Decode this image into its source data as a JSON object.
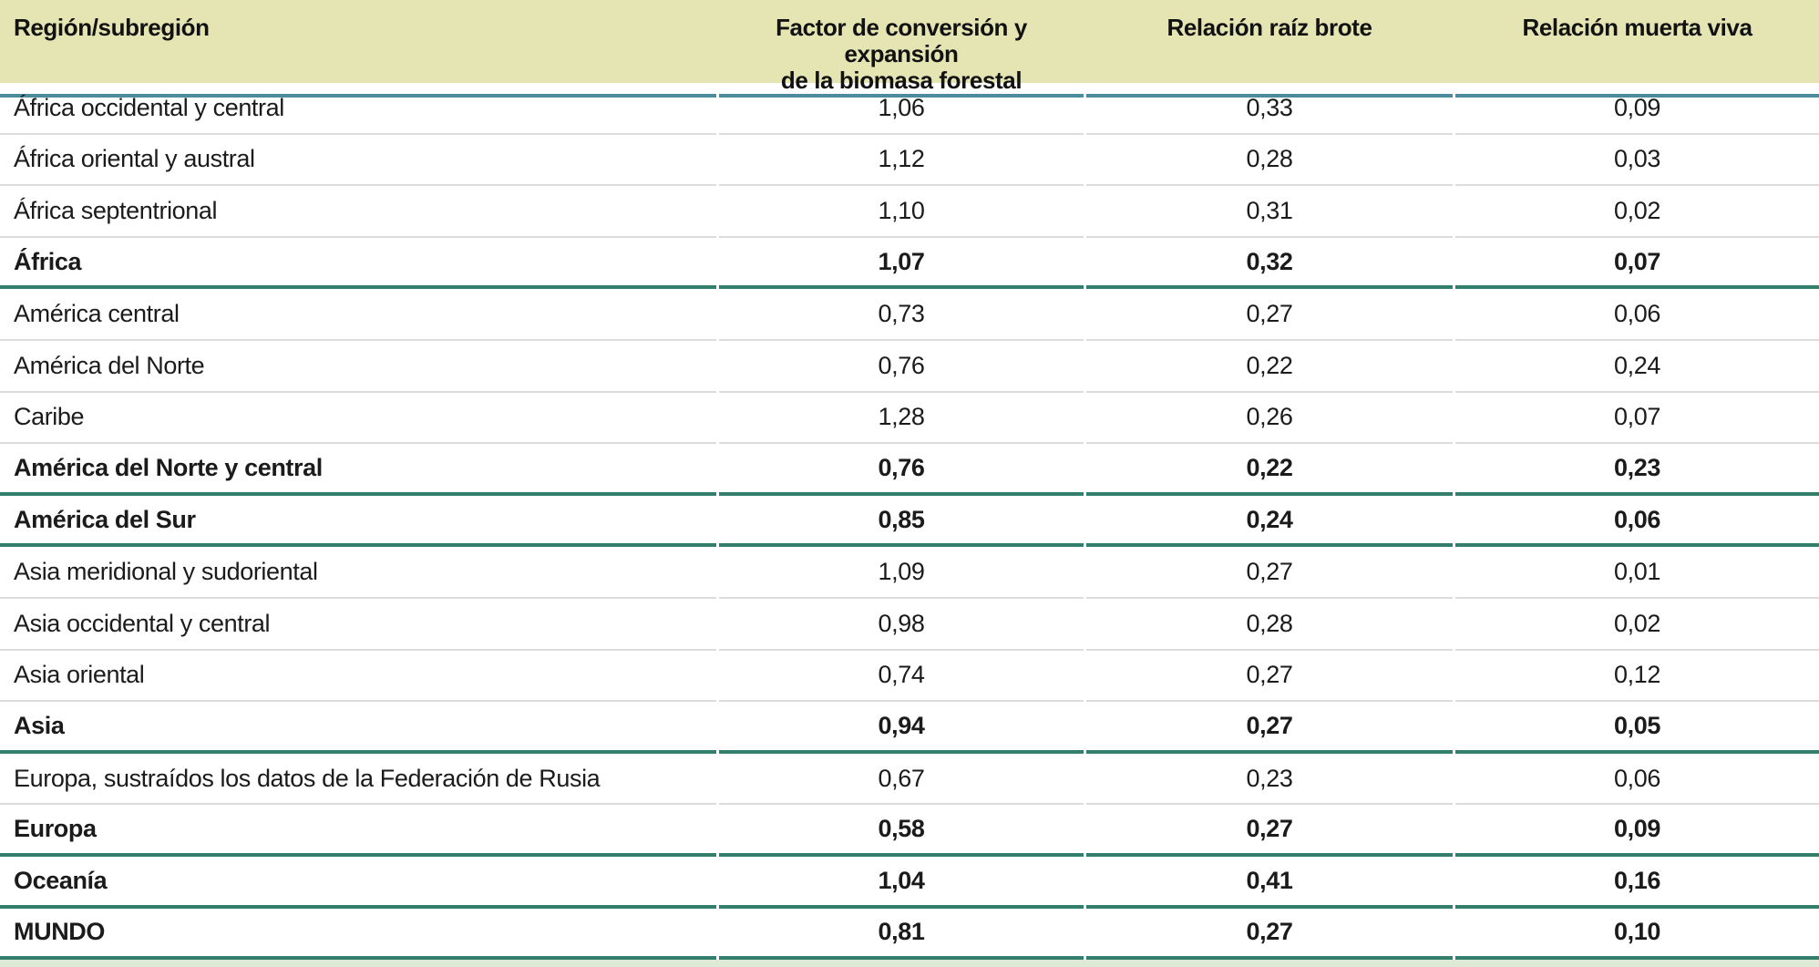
{
  "colors": {
    "header_bg": "#e4e5b2",
    "header_border": "#4b8b9e",
    "total_border": "#337f6d",
    "row_border": "#dcdcdc",
    "strip": "#dcead6",
    "text": "#1b1b1b"
  },
  "table": {
    "columns": [
      {
        "label": "Región/subregión"
      },
      {
        "label": "Factor de conversión y expansión de la biomasa forestal",
        "label_lines": [
          "Factor de conversión y expansión",
          "de la biomasa forestal"
        ]
      },
      {
        "label": "Relación raíz brote"
      },
      {
        "label": "Relación muerta viva"
      }
    ],
    "rows": [
      {
        "region": "África occidental y central",
        "factor": "1,06",
        "raiz_brote": "0,33",
        "muerta_viva": "0,09",
        "bold": false
      },
      {
        "region": "África oriental y austral",
        "factor": "1,12",
        "raiz_brote": "0,28",
        "muerta_viva": "0,03",
        "bold": false
      },
      {
        "region": "África septentrional",
        "factor": "1,10",
        "raiz_brote": "0,31",
        "muerta_viva": "0,02",
        "bold": false
      },
      {
        "region": "África",
        "factor": "1,07",
        "raiz_brote": "0,32",
        "muerta_viva": "0,07",
        "bold": true
      },
      {
        "region": "América central",
        "factor": "0,73",
        "raiz_brote": "0,27",
        "muerta_viva": "0,06",
        "bold": false
      },
      {
        "region": "América del Norte",
        "factor": "0,76",
        "raiz_brote": "0,22",
        "muerta_viva": "0,24",
        "bold": false
      },
      {
        "region": "Caribe",
        "factor": "1,28",
        "raiz_brote": "0,26",
        "muerta_viva": "0,07",
        "bold": false
      },
      {
        "region": "América del Norte y central",
        "factor": "0,76",
        "raiz_brote": "0,22",
        "muerta_viva": "0,23",
        "bold": true
      },
      {
        "region": "América del Sur",
        "factor": "0,85",
        "raiz_brote": "0,24",
        "muerta_viva": "0,06",
        "bold": true
      },
      {
        "region": "Asia meridional y sudoriental",
        "factor": "1,09",
        "raiz_brote": "0,27",
        "muerta_viva": "0,01",
        "bold": false
      },
      {
        "region": "Asia occidental y central",
        "factor": "0,98",
        "raiz_brote": "0,28",
        "muerta_viva": "0,02",
        "bold": false
      },
      {
        "region": "Asia oriental",
        "factor": "0,74",
        "raiz_brote": "0,27",
        "muerta_viva": "0,12",
        "bold": false
      },
      {
        "region": "Asia",
        "factor": "0,94",
        "raiz_brote": "0,27",
        "muerta_viva": "0,05",
        "bold": true
      },
      {
        "region": "Europa, sustraídos los datos de la Federación de Rusia",
        "factor": "0,67",
        "raiz_brote": "0,23",
        "muerta_viva": "0,06",
        "bold": false
      },
      {
        "region": "Europa",
        "factor": "0,58",
        "raiz_brote": "0,27",
        "muerta_viva": "0,09",
        "bold": true
      },
      {
        "region": "Oceanía",
        "factor": "1,04",
        "raiz_brote": "0,41",
        "muerta_viva": "0,16",
        "bold": true
      },
      {
        "region": "MUNDO",
        "factor": "0,81",
        "raiz_brote": "0,27",
        "muerta_viva": "0,10",
        "bold": true
      }
    ]
  }
}
